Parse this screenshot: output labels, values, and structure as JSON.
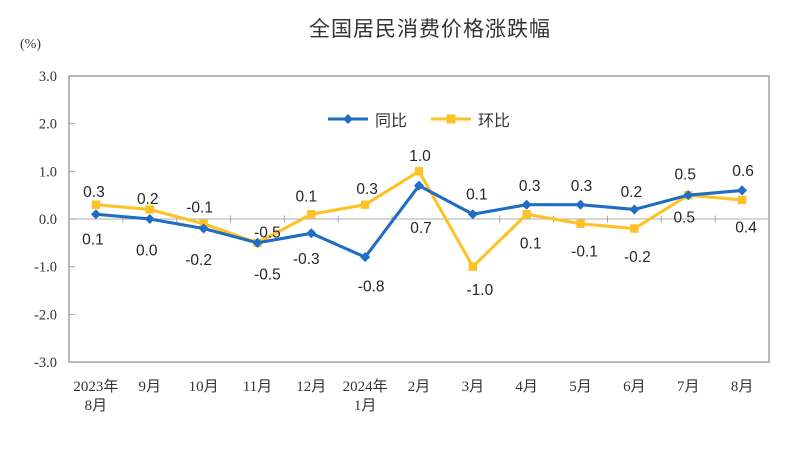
{
  "title": "全国居民消费价格涨跌幅",
  "unit_label": "(%)",
  "colors": {
    "tongbi_blue": "#1F6EC3",
    "huanbi_yellow": "#FFC226",
    "plot_border": "#A6A6A6",
    "zero_line": "#BDBDBD",
    "tick": "#A6A6A6",
    "axis_text": "#333333",
    "data_label_text": "#262626",
    "background": "#FFFFFF"
  },
  "chart_data": {
    "type": "line",
    "title": "全国居民消费价格涨跌幅",
    "ylabel": "(%)",
    "xlabel": "",
    "ylim": [
      -3.0,
      3.0
    ],
    "ytick_step": 1.0,
    "ytick_labels": [
      "3.0",
      "2.0",
      "1.0",
      "0.0",
      "-1.0",
      "-2.0",
      "-3.0"
    ],
    "grid": false,
    "legend_position": "top-center",
    "categories": [
      "2023年8月",
      "9月",
      "10月",
      "11月",
      "12月",
      "2024年1月",
      "2月",
      "3月",
      "4月",
      "5月",
      "6月",
      "7月",
      "8月"
    ],
    "category_labels": [
      [
        "2023年",
        "8月"
      ],
      [
        "9月"
      ],
      [
        "10月"
      ],
      [
        "11月"
      ],
      [
        "12月"
      ],
      [
        "2024年",
        "1月"
      ],
      [
        "2月"
      ],
      [
        "3月"
      ],
      [
        "4月"
      ],
      [
        "5月"
      ],
      [
        "6月"
      ],
      [
        "7月"
      ],
      [
        "8月"
      ]
    ],
    "series": [
      {
        "name": "环比",
        "color": "#FFC226",
        "marker": "square",
        "values": [
          0.3,
          0.2,
          -0.1,
          -0.5,
          0.1,
          0.3,
          1.0,
          -1.0,
          0.1,
          -0.1,
          -0.2,
          0.5,
          0.4
        ],
        "label_offsets": [
          [
            -2,
            -13
          ],
          [
            -2,
            -11
          ],
          [
            -4,
            -17
          ],
          [
            10,
            -11
          ],
          [
            -5,
            -18
          ],
          [
            2,
            -16
          ],
          [
            1,
            -16
          ],
          [
            7,
            23
          ],
          [
            4,
            29
          ],
          [
            4,
            27
          ],
          [
            3,
            28
          ],
          [
            -4,
            22
          ],
          [
            4,
            27
          ]
        ]
      },
      {
        "name": "同比",
        "color": "#1F6EC3",
        "marker": "diamond",
        "values": [
          0.1,
          0.0,
          -0.2,
          -0.5,
          -0.3,
          -0.8,
          0.7,
          0.1,
          0.3,
          0.3,
          0.2,
          0.5,
          0.6
        ],
        "label_offsets": [
          [
            -3,
            25
          ],
          [
            -3,
            31
          ],
          [
            -5,
            31
          ],
          [
            10,
            31
          ],
          [
            -5,
            25
          ],
          [
            6,
            29
          ],
          [
            2,
            42
          ],
          [
            4,
            -20
          ],
          [
            3,
            -19
          ],
          [
            1,
            -19
          ],
          [
            -3,
            -18
          ],
          [
            -3,
            -21
          ],
          [
            1,
            -20
          ]
        ]
      }
    ],
    "legend_order": [
      1,
      0
    ]
  }
}
